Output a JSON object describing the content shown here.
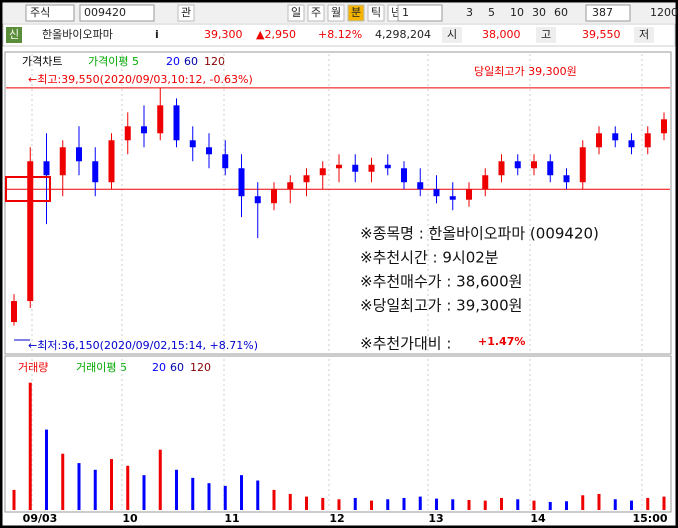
{
  "toolbar": {
    "market": "주식",
    "code": "009420",
    "tabs": [
      "관",
      "일",
      "주",
      "월",
      "분",
      "틱",
      "년"
    ],
    "period": "1",
    "intervals": [
      "3",
      "5",
      "10",
      "30",
      "60"
    ],
    "count": "387",
    "count2": "1200"
  },
  "info": {
    "badge": "신",
    "name": "한올바이오파마",
    "icon": "i",
    "price": "39,300",
    "change": "▲2,950",
    "rate": "+8.12%",
    "volume": "4,298,204",
    "open_label": "시",
    "open": "38,000",
    "high_label": "고",
    "high": "39,550",
    "low_label": "저"
  },
  "chart": {
    "type": "candlestick",
    "legend": [
      "가격차트",
      "가격이평 5",
      "20",
      "60",
      "120"
    ],
    "high_note": "←최고:39,550(2020/09/03,10:12, -0.63%)",
    "low_note": "←최저:36,150(2020/09/02,15:14, +8.71%)",
    "headline": "당일최고가 39,300원",
    "notes": [
      "※종목명 : 한올바이오파마 (009420)",
      "※추천시간 : 9시02분",
      "※추천매수가 : 38,600원",
      "※당일최고가 : 39,300원",
      "※추천가대비 :"
    ],
    "gain": "+1.47%",
    "x_labels": [
      "09/03",
      "10",
      "11",
      "12",
      "13",
      "14",
      "15:00"
    ],
    "ylim": [
      35800,
      39920
    ],
    "high_price": 39550,
    "reference_price": 38100,
    "candles": [
      [
        36200,
        36600,
        36150,
        36500
      ],
      [
        36500,
        38700,
        36400,
        38500
      ],
      [
        38500,
        38900,
        37600,
        38300
      ],
      [
        38300,
        38800,
        38000,
        38700
      ],
      [
        38700,
        39000,
        38300,
        38500
      ],
      [
        38500,
        38700,
        38000,
        38200
      ],
      [
        38200,
        38900,
        38100,
        38800
      ],
      [
        38800,
        39200,
        38600,
        39000
      ],
      [
        39000,
        39300,
        38700,
        38900
      ],
      [
        38900,
        39550,
        38800,
        39300
      ],
      [
        39300,
        39400,
        38700,
        38800
      ],
      [
        38800,
        39000,
        38500,
        38700
      ],
      [
        38700,
        38900,
        38400,
        38600
      ],
      [
        38600,
        38800,
        38300,
        38400
      ],
      [
        38400,
        38600,
        37700,
        38000
      ],
      [
        38000,
        38200,
        37400,
        37900
      ],
      [
        37900,
        38200,
        37800,
        38100
      ],
      [
        38100,
        38300,
        37900,
        38200
      ],
      [
        38200,
        38400,
        38000,
        38300
      ],
      [
        38300,
        38500,
        38100,
        38400
      ],
      [
        38400,
        38600,
        38200,
        38450
      ],
      [
        38450,
        38600,
        38200,
        38350
      ],
      [
        38350,
        38550,
        38200,
        38450
      ],
      [
        38450,
        38600,
        38300,
        38400
      ],
      [
        38400,
        38500,
        38100,
        38200
      ],
      [
        38200,
        38400,
        38000,
        38100
      ],
      [
        38100,
        38300,
        37900,
        38000
      ],
      [
        38000,
        38200,
        37800,
        37950
      ],
      [
        37950,
        38200,
        37850,
        38100
      ],
      [
        38100,
        38400,
        38000,
        38300
      ],
      [
        38300,
        38600,
        38200,
        38500
      ],
      [
        38500,
        38600,
        38300,
        38400
      ],
      [
        38400,
        38600,
        38300,
        38500
      ],
      [
        38500,
        38600,
        38200,
        38300
      ],
      [
        38300,
        38400,
        38100,
        38200
      ],
      [
        38200,
        38800,
        38100,
        38700
      ],
      [
        38700,
        39000,
        38600,
        38900
      ],
      [
        38900,
        39000,
        38700,
        38800
      ],
      [
        38800,
        38900,
        38600,
        38700
      ],
      [
        38700,
        39000,
        38600,
        38900
      ],
      [
        38900,
        39200,
        38800,
        39100
      ]
    ],
    "volume_legend": [
      "거래량",
      "거래이평 5",
      "20",
      "60",
      "120"
    ],
    "volume_lim": [
      0,
      1000000
    ],
    "volumes": [
      150000,
      950000,
      600000,
      420000,
      350000,
      300000,
      380000,
      330000,
      260000,
      450000,
      300000,
      240000,
      200000,
      180000,
      260000,
      220000,
      150000,
      120000,
      100000,
      90000,
      80000,
      90000,
      70000,
      80000,
      90000,
      100000,
      85000,
      80000,
      75000,
      70000,
      90000,
      80000,
      70000,
      60000,
      65000,
      110000,
      120000,
      80000,
      70000,
      90000,
      100000
    ]
  }
}
